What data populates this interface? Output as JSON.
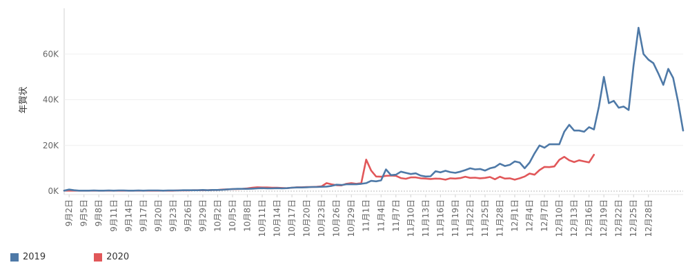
{
  "chart_data": {
    "type": "line",
    "ylabel": "年賀状",
    "ylim": [
      0,
      80000
    ],
    "yticks": [
      {
        "v": 0,
        "label": "0K"
      },
      {
        "v": 20000,
        "label": "20K"
      },
      {
        "v": 40000,
        "label": "40K"
      },
      {
        "v": 60000,
        "label": "60K"
      }
    ],
    "xlabels": [
      "9月2日",
      "9月5日",
      "9月8日",
      "9月11日",
      "9月14日",
      "9月17日",
      "9月20日",
      "9月23日",
      "9月26日",
      "9月29日",
      "10月2日",
      "10月5日",
      "10月8日",
      "10月11日",
      "10月14日",
      "10月17日",
      "10月20日",
      "10月23日",
      "10月26日",
      "10月29日",
      "11月1日",
      "11月4日",
      "11月7日",
      "11月10日",
      "11月13日",
      "11月16日",
      "11月19日",
      "11月22日",
      "11月25日",
      "11月28日",
      "12月1日",
      "12月4日",
      "12月7日",
      "12月10日",
      "12月13日",
      "12月16日",
      "12月19日",
      "12月22日",
      "12月25日",
      "12月28日"
    ],
    "x_start_index": 1,
    "x_tick_every": 3,
    "series": [
      {
        "name": "2019",
        "color": "#4e79a7",
        "start_index": 0,
        "values": [
          200,
          700,
          400,
          200,
          200,
          200,
          300,
          200,
          200,
          300,
          200,
          300,
          300,
          200,
          200,
          300,
          200,
          300,
          300,
          300,
          200,
          300,
          300,
          300,
          400,
          400,
          400,
          400,
          500,
          400,
          500,
          500,
          600,
          800,
          900,
          1000,
          1000,
          1000,
          1100,
          1200,
          1300,
          1200,
          1200,
          1300,
          1200,
          1300,
          1500,
          1600,
          1600,
          1700,
          1800,
          1800,
          1900,
          2000,
          2300,
          2800,
          2700,
          3000,
          3000,
          3000,
          3200,
          3500,
          4500,
          4300,
          4700,
          9500,
          7000,
          7200,
          8500,
          8000,
          7500,
          7800,
          6800,
          6400,
          6500,
          8700,
          8200,
          8900,
          8300,
          8000,
          8500,
          9200,
          10000,
          9500,
          9700,
          9000,
          10000,
          10500,
          12000,
          11000,
          11500,
          13000,
          12500,
          10000,
          12500,
          16500,
          20000,
          19000,
          20500,
          20500,
          20500,
          26000,
          29000,
          26500,
          26500,
          26000,
          28000,
          27000,
          37000,
          50000,
          38500,
          39500,
          36500,
          37000,
          35500,
          55000,
          71500,
          60000,
          57500,
          56000,
          51500,
          46500,
          53500,
          49500,
          39000,
          26500
        ]
      },
      {
        "name": "2020",
        "color": "#e15759",
        "start_index": 0,
        "values": [
          200,
          200,
          200,
          200,
          200,
          200,
          200,
          200,
          200,
          200,
          200,
          200,
          200,
          200,
          200,
          200,
          200,
          200,
          200,
          200,
          200,
          200,
          200,
          300,
          300,
          300,
          400,
          400,
          400,
          400,
          500,
          500,
          700,
          800,
          900,
          900,
          1000,
          1200,
          1500,
          1700,
          1600,
          1600,
          1500,
          1500,
          1400,
          1300,
          1500,
          1700,
          1700,
          1800,
          1800,
          1900,
          2100,
          3500,
          3000,
          2600,
          2500,
          3200,
          3500,
          3200,
          3500,
          13800,
          9000,
          6400,
          6300,
          6700,
          6800,
          6700,
          5700,
          5400,
          6000,
          6000,
          5600,
          5500,
          5300,
          5500,
          5400,
          5000,
          5600,
          5500,
          5700,
          6300,
          5800,
          5900,
          5600,
          5800,
          6200,
          5200,
          6300,
          5500,
          5600,
          5000,
          5600,
          6400,
          7700,
          7200,
          9200,
          10600,
          10500,
          10800,
          13700,
          15000,
          13500,
          12700,
          13500,
          13000,
          12600,
          15900
        ]
      }
    ]
  },
  "legend": {
    "items": [
      {
        "label": "2019",
        "color": "#4e79a7"
      },
      {
        "label": "2020",
        "color": "#e15759"
      }
    ]
  }
}
